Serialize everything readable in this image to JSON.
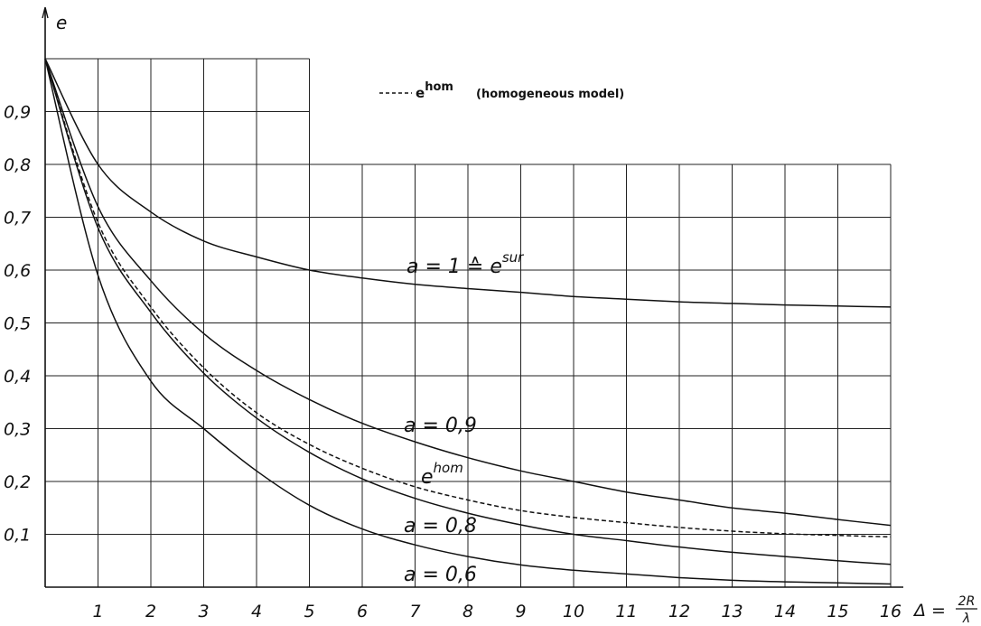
{
  "chart_data": {
    "type": "line",
    "ylabel": "e",
    "xlabel": "Δ = 2R/λ",
    "xlabel_prefix": "Δ =",
    "xlabel_num": "2R",
    "xlabel_den": "λ",
    "xlim": [
      0,
      16
    ],
    "ylim": [
      0,
      1
    ],
    "x_ticks": [
      "1",
      "2",
      "3",
      "4",
      "5",
      "6",
      "7",
      "8",
      "9",
      "10",
      "11",
      "12",
      "13",
      "14",
      "15",
      "16"
    ],
    "y_ticks": [
      "0,1",
      "0,2",
      "0,3",
      "0,4",
      "0,5",
      "0,6",
      "0,7",
      "0,8",
      "0,9"
    ],
    "grid": true,
    "legend": {
      "position": "top",
      "text_main": "e",
      "text_sup": "hom",
      "text_rest": "(homogeneous model)",
      "style": "dashed"
    },
    "x": [
      0,
      1,
      2,
      3,
      4,
      5,
      6,
      7,
      8,
      9,
      10,
      11,
      12,
      13,
      14,
      15,
      16
    ],
    "series": [
      {
        "name": "a = 1 ≙ e^sur",
        "label_main": "a = 1 ≙ e",
        "label_sup": "sur",
        "style": "solid",
        "values": [
          1.0,
          0.8,
          0.71,
          0.655,
          0.625,
          0.6,
          0.585,
          0.573,
          0.565,
          0.558,
          0.55,
          0.545,
          0.54,
          0.537,
          0.534,
          0.532,
          0.53
        ]
      },
      {
        "name": "a = 0,9",
        "label_main": "a = 0,9",
        "style": "solid",
        "values": [
          1.0,
          0.72,
          0.58,
          0.48,
          0.41,
          0.355,
          0.31,
          0.275,
          0.245,
          0.22,
          0.2,
          0.18,
          0.165,
          0.15,
          0.14,
          0.128,
          0.117
        ]
      },
      {
        "name": "e^hom",
        "label_main": "e",
        "label_sup": "hom",
        "style": "dashed",
        "values": [
          1.0,
          0.69,
          0.53,
          0.415,
          0.33,
          0.27,
          0.225,
          0.19,
          0.165,
          0.145,
          0.132,
          0.122,
          0.113,
          0.106,
          0.101,
          0.098,
          0.095
        ]
      },
      {
        "name": "a = 0,8",
        "label_main": "a = 0,8",
        "style": "solid",
        "values": [
          1.0,
          0.68,
          0.52,
          0.405,
          0.32,
          0.255,
          0.205,
          0.168,
          0.14,
          0.118,
          0.1,
          0.088,
          0.076,
          0.066,
          0.058,
          0.05,
          0.043
        ]
      },
      {
        "name": "a = 0,6",
        "label_main": "a = 0,6",
        "style": "solid",
        "values": [
          1.0,
          0.59,
          0.39,
          0.3,
          0.22,
          0.155,
          0.11,
          0.08,
          0.058,
          0.042,
          0.032,
          0.025,
          0.018,
          0.013,
          0.01,
          0.008,
          0.006
        ]
      }
    ]
  }
}
